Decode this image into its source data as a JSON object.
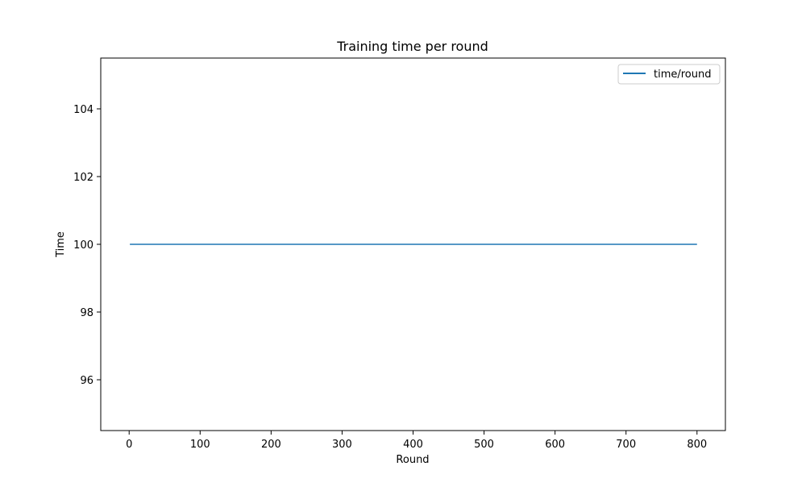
{
  "chart_data": {
    "type": "line",
    "title": "Training time per round",
    "xlabel": "Round",
    "ylabel": "Time",
    "xlim": [
      -40,
      840
    ],
    "ylim": [
      94.5,
      105.5
    ],
    "x_ticks": [
      0,
      100,
      200,
      300,
      400,
      500,
      600,
      700,
      800
    ],
    "y_ticks": [
      96,
      98,
      100,
      102,
      104
    ],
    "grid": false,
    "legend_position": "top-right",
    "series": [
      {
        "name": "time/round",
        "color": "#1f77b4",
        "x": [
          1,
          800
        ],
        "y": [
          100,
          100
        ]
      }
    ]
  }
}
